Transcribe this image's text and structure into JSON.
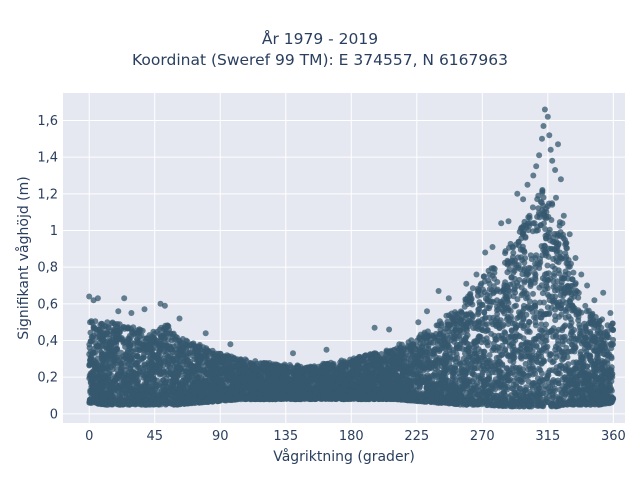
{
  "chart_data": {
    "type": "scatter",
    "title_line1": "År 1979 - 2019",
    "title_line2": "Koordinat (Sweref 99 TM): E 374557, N 6167963",
    "xlabel": "Vågriktning (grader)",
    "ylabel": "Signifikant våghöjd (m)",
    "xlim": [
      -18,
      368
    ],
    "ylim": [
      -0.05,
      1.75
    ],
    "xticks": [
      0,
      45,
      90,
      135,
      180,
      225,
      270,
      315,
      360
    ],
    "xtick_labels": [
      "0",
      "45",
      "90",
      "135",
      "180",
      "225",
      "270",
      "315",
      "360"
    ],
    "yticks": [
      0,
      0.2,
      0.4,
      0.6,
      0.8,
      1.0,
      1.2,
      1.4,
      1.6
    ],
    "ytick_labels": [
      "0",
      "0,2",
      "0,4",
      "0,6",
      "0,8",
      "1",
      "1,2",
      "1,4",
      "1,6"
    ],
    "grid": true,
    "marker_color": "#35586f",
    "plot_bg": "#e5e8f0",
    "envelope": {
      "x": [
        0,
        10,
        20,
        30,
        45,
        55,
        60,
        75,
        90,
        105,
        120,
        135,
        150,
        165,
        180,
        195,
        210,
        225,
        240,
        255,
        270,
        285,
        295,
        305,
        310,
        315,
        320,
        325,
        330,
        340,
        350,
        360
      ],
      "y_upper": [
        0.52,
        0.5,
        0.5,
        0.48,
        0.45,
        0.5,
        0.42,
        0.38,
        0.33,
        0.3,
        0.28,
        0.27,
        0.26,
        0.28,
        0.3,
        0.33,
        0.36,
        0.42,
        0.5,
        0.6,
        0.75,
        0.88,
        1.0,
        1.15,
        1.22,
        1.25,
        1.2,
        1.05,
        0.85,
        0.6,
        0.52,
        0.5
      ],
      "y_lower": [
        0.06,
        0.05,
        0.05,
        0.05,
        0.05,
        0.05,
        0.05,
        0.06,
        0.07,
        0.08,
        0.08,
        0.08,
        0.08,
        0.08,
        0.08,
        0.08,
        0.08,
        0.07,
        0.06,
        0.05,
        0.05,
        0.04,
        0.04,
        0.04,
        0.04,
        0.04,
        0.04,
        0.04,
        0.05,
        0.05,
        0.05,
        0.06
      ]
    },
    "outliers": [
      {
        "x": 0,
        "y": 0.64
      },
      {
        "x": 3,
        "y": 0.62
      },
      {
        "x": 6,
        "y": 0.63
      },
      {
        "x": 20,
        "y": 0.56
      },
      {
        "x": 24,
        "y": 0.63
      },
      {
        "x": 29,
        "y": 0.55
      },
      {
        "x": 38,
        "y": 0.57
      },
      {
        "x": 49,
        "y": 0.6
      },
      {
        "x": 52,
        "y": 0.59
      },
      {
        "x": 62,
        "y": 0.52
      },
      {
        "x": 80,
        "y": 0.44
      },
      {
        "x": 97,
        "y": 0.38
      },
      {
        "x": 140,
        "y": 0.33
      },
      {
        "x": 163,
        "y": 0.35
      },
      {
        "x": 196,
        "y": 0.47
      },
      {
        "x": 206,
        "y": 0.46
      },
      {
        "x": 213,
        "y": 0.38
      },
      {
        "x": 226,
        "y": 0.5
      },
      {
        "x": 232,
        "y": 0.56
      },
      {
        "x": 240,
        "y": 0.67
      },
      {
        "x": 247,
        "y": 0.63
      },
      {
        "x": 259,
        "y": 0.71
      },
      {
        "x": 266,
        "y": 0.76
      },
      {
        "x": 272,
        "y": 0.88
      },
      {
        "x": 277,
        "y": 0.91
      },
      {
        "x": 283,
        "y": 1.04
      },
      {
        "x": 288,
        "y": 1.05
      },
      {
        "x": 294,
        "y": 1.2
      },
      {
        "x": 298,
        "y": 1.17
      },
      {
        "x": 301,
        "y": 1.25
      },
      {
        "x": 305,
        "y": 1.3
      },
      {
        "x": 307,
        "y": 1.35
      },
      {
        "x": 309,
        "y": 1.41
      },
      {
        "x": 311,
        "y": 1.5
      },
      {
        "x": 312,
        "y": 1.57
      },
      {
        "x": 313,
        "y": 1.66
      },
      {
        "x": 315,
        "y": 1.62
      },
      {
        "x": 316,
        "y": 1.52
      },
      {
        "x": 317,
        "y": 1.44
      },
      {
        "x": 318,
        "y": 1.38
      },
      {
        "x": 320,
        "y": 1.33
      },
      {
        "x": 322,
        "y": 1.47
      },
      {
        "x": 324,
        "y": 1.28
      },
      {
        "x": 326,
        "y": 1.08
      },
      {
        "x": 330,
        "y": 0.98
      },
      {
        "x": 334,
        "y": 0.85
      },
      {
        "x": 338,
        "y": 0.76
      },
      {
        "x": 342,
        "y": 0.7
      },
      {
        "x": 347,
        "y": 0.62
      },
      {
        "x": 353,
        "y": 0.66
      },
      {
        "x": 358,
        "y": 0.55
      }
    ]
  }
}
